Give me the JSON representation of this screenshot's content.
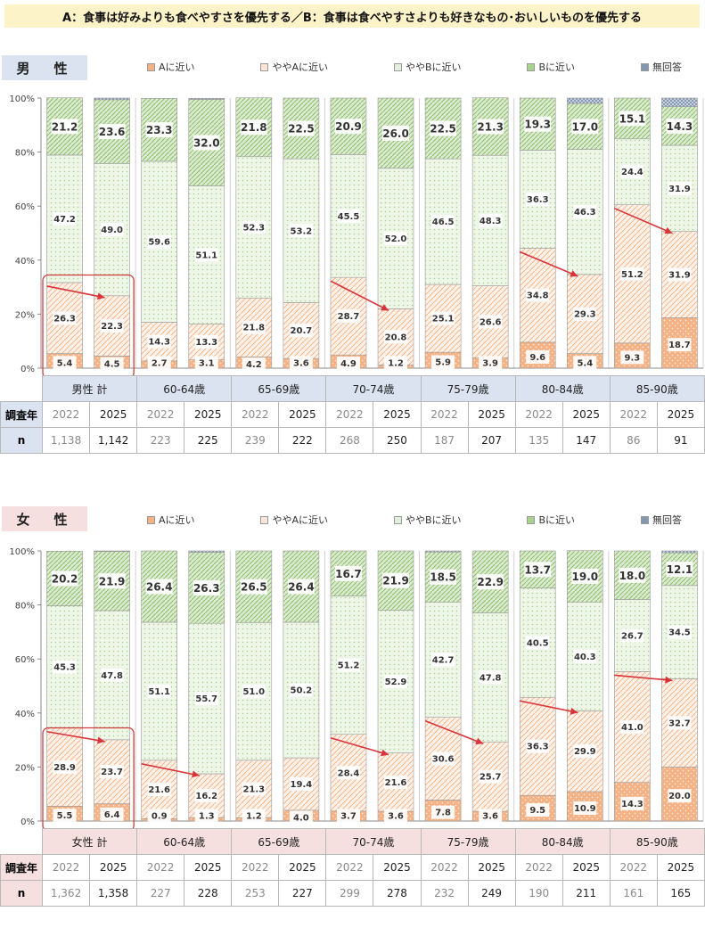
{
  "title": "A：食事は好みよりも食べやすさを優先する／B：食事は食べやすさよりも好きなもの･おいしいものを優先する",
  "legend": [
    "Aに近い",
    "ややAに近い",
    "ややBに近い",
    "Bに近い",
    "無回答"
  ],
  "row_labels": {
    "year": "調査年",
    "n": "n"
  },
  "colors": {
    "a": "#f4b183",
    "a_light": "#fbe5d6",
    "b_light": "#e2efda",
    "b": "#a9d18e",
    "na": "#8497b0",
    "male_header": "#dae3ef",
    "female_header": "#f6dfdf",
    "arrow": "#d9343a",
    "highlight_box": "#d03c3c"
  },
  "chart_data": [
    {
      "type": "bar",
      "stacked": true,
      "title": "男　性",
      "ylim": [
        0,
        100
      ],
      "yticks": [
        "0%",
        "20%",
        "40%",
        "60%",
        "80%",
        "100%"
      ],
      "groups": [
        "男性 計",
        "60-64歳",
        "65-69歳",
        "70-74歳",
        "75-79歳",
        "80-84歳",
        "85-90歳"
      ],
      "years": [
        "2022",
        "2025",
        "2022",
        "2025",
        "2022",
        "2025",
        "2022",
        "2025",
        "2022",
        "2025",
        "2022",
        "2025",
        "2022",
        "2025"
      ],
      "n": [
        "1,138",
        "1,142",
        "223",
        "225",
        "239",
        "222",
        "268",
        "250",
        "187",
        "207",
        "135",
        "147",
        "86",
        "91"
      ],
      "series": [
        {
          "name": "Aに近い",
          "values": [
            5.4,
            4.5,
            2.7,
            3.1,
            4.2,
            3.6,
            4.9,
            1.2,
            5.9,
            3.9,
            9.6,
            5.4,
            9.3,
            18.7
          ]
        },
        {
          "name": "ややAに近い",
          "values": [
            26.3,
            22.3,
            14.3,
            13.3,
            21.8,
            20.7,
            28.7,
            20.8,
            25.1,
            26.6,
            34.8,
            29.3,
            51.2,
            31.9
          ]
        },
        {
          "name": "ややBに近い",
          "values": [
            47.2,
            49.0,
            59.6,
            51.1,
            52.3,
            53.2,
            45.5,
            52.0,
            46.5,
            48.3,
            36.3,
            46.3,
            24.4,
            31.9
          ]
        },
        {
          "name": "Bに近い",
          "values": [
            21.2,
            23.6,
            23.3,
            32.0,
            21.8,
            22.5,
            20.9,
            26.0,
            22.5,
            21.3,
            19.3,
            17.0,
            15.1,
            14.3
          ]
        },
        {
          "name": "無回答",
          "values": [
            0,
            0.6,
            0,
            0.4,
            0,
            0,
            0,
            0,
            0,
            0,
            0,
            2.0,
            0,
            3.2
          ]
        }
      ],
      "highlight_pairs": [
        0
      ],
      "arrow_pairs": [
        0,
        3,
        5,
        6
      ]
    },
    {
      "type": "bar",
      "stacked": true,
      "title": "女　性",
      "ylim": [
        0,
        100
      ],
      "yticks": [
        "0%",
        "20%",
        "40%",
        "60%",
        "80%",
        "100%"
      ],
      "groups": [
        "女性 計",
        "60-64歳",
        "65-69歳",
        "70-74歳",
        "75-79歳",
        "80-84歳",
        "85-90歳"
      ],
      "years": [
        "2022",
        "2025",
        "2022",
        "2025",
        "2022",
        "2025",
        "2022",
        "2025",
        "2022",
        "2025",
        "2022",
        "2025",
        "2022",
        "2025"
      ],
      "n": [
        "1,362",
        "1,358",
        "227",
        "228",
        "253",
        "227",
        "299",
        "278",
        "232",
        "249",
        "190",
        "211",
        "161",
        "165"
      ],
      "series": [
        {
          "name": "Aに近い",
          "values": [
            5.5,
            6.4,
            0.9,
            1.3,
            1.2,
            4.0,
            3.7,
            3.6,
            7.8,
            3.6,
            9.5,
            10.9,
            14.3,
            20.0
          ]
        },
        {
          "name": "ややAに近い",
          "values": [
            28.9,
            23.7,
            21.6,
            16.2,
            21.3,
            19.4,
            28.4,
            21.6,
            30.6,
            25.7,
            36.3,
            29.9,
            41.0,
            32.7
          ]
        },
        {
          "name": "ややBに近い",
          "values": [
            45.3,
            47.8,
            51.1,
            55.7,
            51.0,
            50.2,
            51.2,
            52.9,
            42.7,
            47.8,
            40.5,
            40.3,
            26.7,
            34.5
          ]
        },
        {
          "name": "Bに近い",
          "values": [
            20.2,
            21.9,
            26.4,
            26.3,
            26.5,
            26.4,
            16.7,
            21.9,
            18.5,
            22.9,
            13.7,
            19.0,
            18.0,
            12.1
          ]
        },
        {
          "name": "無回答",
          "values": [
            0,
            0.2,
            0,
            0.5,
            0,
            0,
            0,
            0,
            0.4,
            0,
            0,
            0,
            0,
            0.7
          ]
        }
      ],
      "highlight_pairs": [
        0
      ],
      "arrow_pairs": [
        0,
        1,
        3,
        4,
        5,
        6
      ]
    }
  ]
}
